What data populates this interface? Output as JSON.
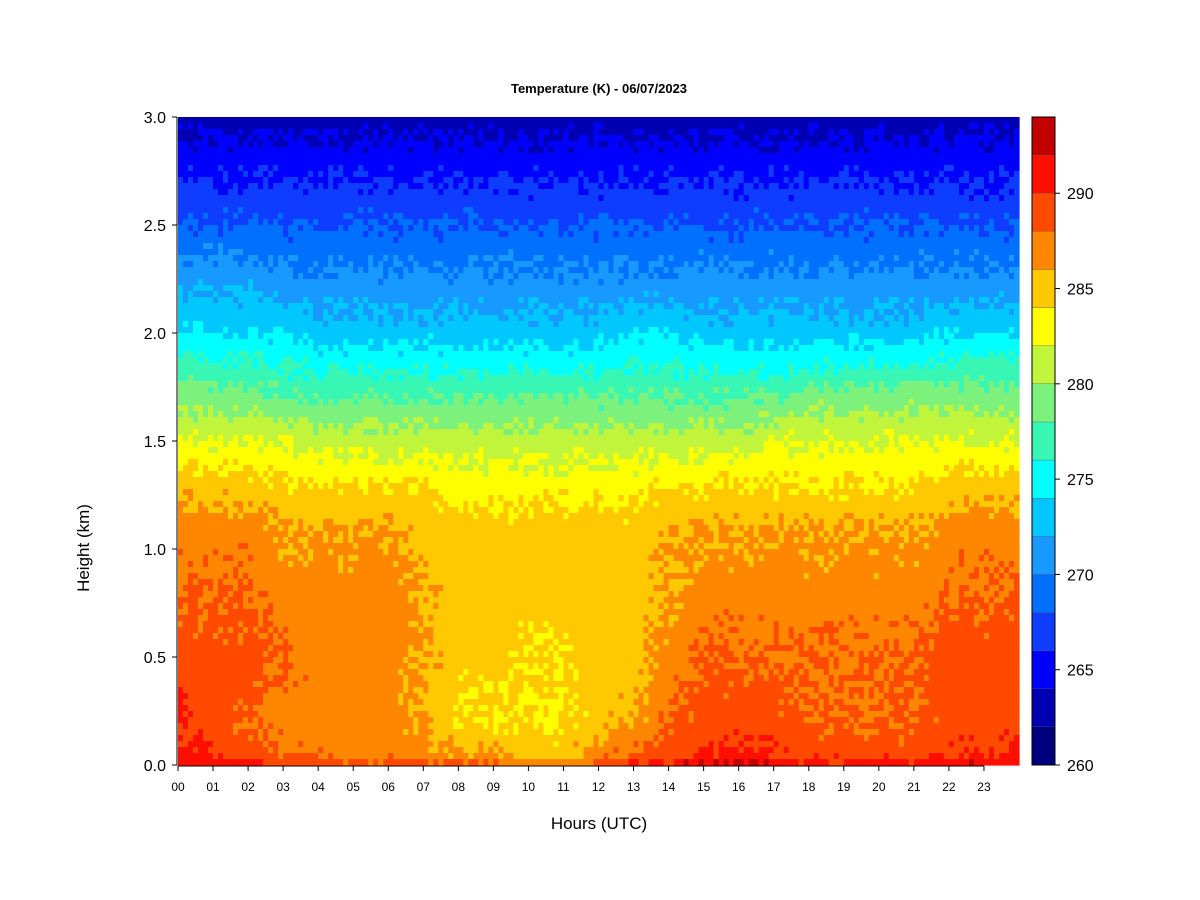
{
  "chart_data": {
    "type": "heatmap",
    "title": "Temperature (K) - 06/07/2023",
    "xlabel": "Hours (UTC)",
    "ylabel": "Height (km)",
    "x_ticks": [
      "00",
      "01",
      "02",
      "03",
      "04",
      "05",
      "06",
      "07",
      "08",
      "09",
      "10",
      "11",
      "12",
      "13",
      "14",
      "15",
      "16",
      "17",
      "18",
      "19",
      "20",
      "21",
      "22",
      "23"
    ],
    "xlim": [
      0,
      24
    ],
    "y_ticks": [
      "0.0",
      "0.5",
      "1.0",
      "1.5",
      "2.0",
      "2.5",
      "3.0"
    ],
    "ylim": [
      0,
      3
    ],
    "colorbar": {
      "range": [
        260,
        294
      ],
      "tick_values": [
        260,
        265,
        270,
        275,
        280,
        285,
        290
      ],
      "tick_labels": [
        "260",
        "265",
        "270",
        "275",
        "280",
        "285",
        "290"
      ],
      "levels": [
        260,
        262,
        264,
        266,
        268,
        270,
        272,
        274,
        276,
        278,
        280,
        282,
        284,
        286,
        288,
        290,
        292,
        294
      ],
      "colors": [
        "#00007f",
        "#0000b2",
        "#0000ff",
        "#0f3dff",
        "#0070ff",
        "#1799ff",
        "#00c8ff",
        "#00ffff",
        "#38f7b4",
        "#7cf27c",
        "#c0f53c",
        "#ffff00",
        "#ffc800",
        "#ff8700",
        "#ff4a00",
        "#ff0f00",
        "#c30000",
        "#8b0000"
      ]
    },
    "hours": [
      0,
      1,
      2,
      3,
      4,
      5,
      6,
      7,
      8,
      9,
      10,
      11,
      12,
      13,
      14,
      15,
      16,
      17,
      18,
      19,
      20,
      21,
      22,
      23,
      24
    ],
    "heights_km": [
      0.0,
      0.05,
      0.2,
      0.5,
      0.8,
      1.1,
      1.3,
      1.5,
      1.7,
      2.0,
      2.2,
      2.5,
      2.8,
      3.0
    ],
    "temperature_K": [
      [
        293,
        291,
        290,
        289,
        288,
        287,
        285,
        282,
        279,
        274,
        272,
        268,
        265,
        263
      ],
      [
        292,
        290,
        289,
        289,
        288,
        287,
        285,
        282,
        279,
        274,
        272,
        268,
        265,
        263
      ],
      [
        291,
        289,
        288,
        289,
        288,
        287,
        285,
        282,
        279,
        274,
        272,
        268,
        265,
        263
      ],
      [
        290,
        288,
        287,
        288,
        287,
        286,
        284,
        282,
        278,
        274,
        271,
        268,
        265,
        263
      ],
      [
        289,
        288,
        287,
        287,
        287,
        286,
        284,
        281,
        278,
        273,
        271,
        268,
        265,
        263
      ],
      [
        289,
        287,
        287,
        287,
        287,
        286,
        284,
        281,
        278,
        273,
        271,
        268,
        265,
        263
      ],
      [
        289,
        287,
        287,
        287,
        287,
        286,
        284,
        281,
        278,
        273,
        271,
        268,
        265,
        263
      ],
      [
        289,
        287,
        286,
        286,
        286,
        285,
        284,
        281,
        278,
        273,
        271,
        268,
        265,
        263
      ],
      [
        289,
        286,
        284,
        285,
        285,
        285,
        283,
        281,
        278,
        273,
        271,
        268,
        265,
        263
      ],
      [
        289,
        286,
        284,
        285,
        285,
        285,
        283,
        281,
        278,
        273,
        271,
        268,
        265,
        263
      ],
      [
        288,
        285,
        284,
        284,
        285,
        285,
        283,
        281,
        278,
        273,
        271,
        268,
        265,
        263
      ],
      [
        288,
        285,
        284,
        284,
        285,
        285,
        283,
        281,
        278,
        273,
        271,
        268,
        265,
        263
      ],
      [
        289,
        287,
        285,
        285,
        285,
        285,
        283,
        281,
        278,
        273,
        271,
        268,
        265,
        263
      ],
      [
        290,
        288,
        286,
        285,
        285,
        285,
        283,
        281,
        278,
        274,
        271,
        268,
        265,
        263
      ],
      [
        291,
        289,
        288,
        287,
        286,
        286,
        284,
        281,
        278,
        274,
        271,
        268,
        265,
        263
      ],
      [
        293,
        290,
        289,
        288,
        287,
        286,
        284,
        281,
        278,
        273,
        271,
        268,
        265,
        263
      ],
      [
        293,
        290,
        289,
        288,
        287,
        286,
        284,
        281,
        278,
        273,
        271,
        268,
        265,
        263
      ],
      [
        292,
        290,
        289,
        288,
        287,
        286,
        284,
        282,
        278,
        273,
        271,
        268,
        265,
        263
      ],
      [
        291,
        289,
        288,
        288,
        287,
        286,
        284,
        282,
        279,
        273,
        271,
        268,
        265,
        263
      ],
      [
        291,
        289,
        288,
        288,
        287,
        286,
        284,
        282,
        279,
        273,
        271,
        268,
        265,
        263
      ],
      [
        291,
        289,
        288,
        288,
        287,
        286,
        284,
        282,
        279,
        273,
        271,
        268,
        265,
        263
      ],
      [
        291,
        289,
        288,
        288,
        287,
        286,
        284,
        282,
        279,
        273,
        271,
        268,
        265,
        263
      ],
      [
        292,
        290,
        289,
        289,
        288,
        287,
        285,
        282,
        279,
        274,
        271,
        268,
        265,
        263
      ],
      [
        292,
        290,
        289,
        289,
        288,
        287,
        285,
        282,
        279,
        274,
        271,
        268,
        265,
        263
      ],
      [
        292,
        290,
        289,
        289,
        288,
        287,
        285,
        282,
        279,
        274,
        271,
        268,
        265,
        263
      ]
    ]
  }
}
